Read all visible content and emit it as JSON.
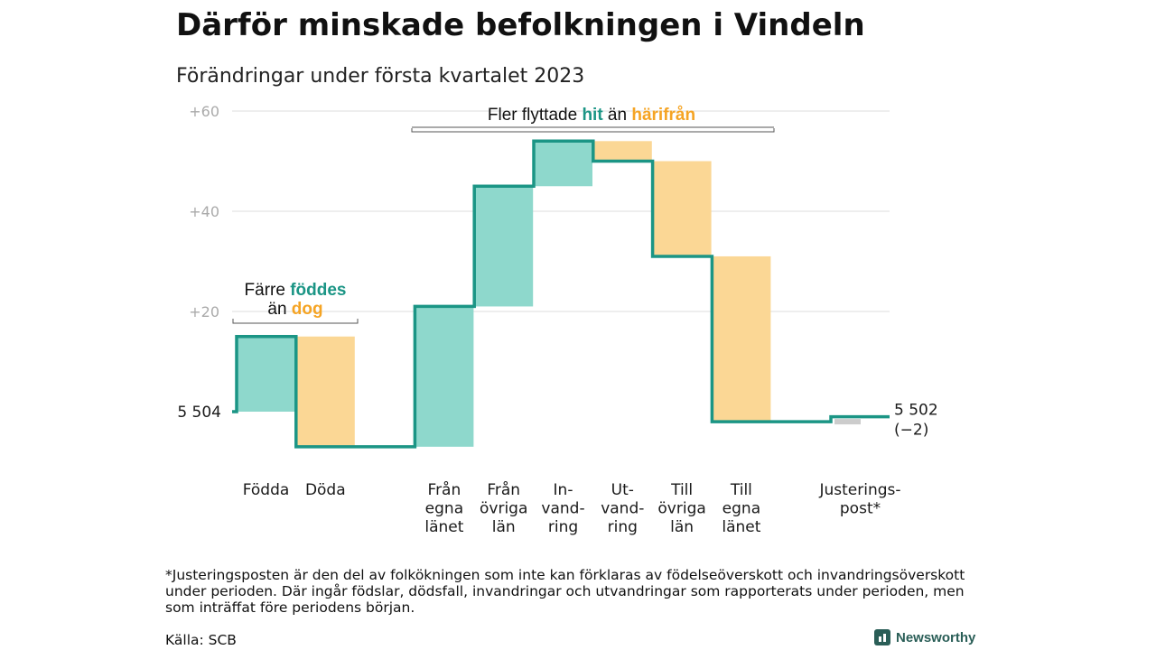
{
  "title": "Därför minskade befolkningen i Vindeln",
  "subtitle": "Förändringar under första kvartalet 2023",
  "chart_data": {
    "type": "waterfall",
    "start": {
      "value": 5504,
      "label": "5 504"
    },
    "end": {
      "value": 5502,
      "label": "5 502",
      "change_label": "(−2)"
    },
    "y_ticks": [
      {
        "value": 20,
        "label": "+20"
      },
      {
        "value": 40,
        "label": "+40"
      },
      {
        "value": 60,
        "label": "+60"
      }
    ],
    "ylim": [
      -8,
      62
    ],
    "grid": true,
    "steps": [
      {
        "label_lines": [
          "Födda"
        ],
        "value": 15,
        "kind": "in"
      },
      {
        "label_lines": [
          "Döda"
        ],
        "value": -22,
        "kind": "out"
      },
      {
        "label_lines": [
          ""
        ],
        "value": 0,
        "kind": "gap"
      },
      {
        "label_lines": [
          "Från",
          "egna",
          "länet"
        ],
        "value": 28,
        "kind": "in"
      },
      {
        "label_lines": [
          "Från",
          "övriga",
          "län"
        ],
        "value": 24,
        "kind": "in"
      },
      {
        "label_lines": [
          "In-",
          "vand-",
          "ring"
        ],
        "value": 9,
        "kind": "in"
      },
      {
        "label_lines": [
          "Ut-",
          "vand-",
          "ring"
        ],
        "value": -4,
        "kind": "out"
      },
      {
        "label_lines": [
          "Till",
          "övriga",
          "län"
        ],
        "value": -19,
        "kind": "out"
      },
      {
        "label_lines": [
          "Till",
          "egna",
          "länet"
        ],
        "value": -33,
        "kind": "out"
      },
      {
        "label_lines": [
          ""
        ],
        "value": 0,
        "kind": "gap"
      },
      {
        "label_lines": [
          "Justerings-",
          "post*"
        ],
        "value": 0,
        "kind": "adjust"
      }
    ],
    "annotations": {
      "births": {
        "line1_prefix": "Färre ",
        "line1_highlight": "föddes",
        "line2_prefix": "än ",
        "line2_highlight": "dog"
      },
      "migration": {
        "prefix": "Fler flyttade ",
        "highlight_in": "hit",
        "middle": " än ",
        "highlight_out": "härifrån"
      }
    },
    "colors": {
      "in": "#8ed8cc",
      "out": "#fbd795",
      "line": "#1b9585",
      "text_in": "#1b9585",
      "text_out": "#f5a424",
      "grid": "#dddddd",
      "tick": "#aaaaaa",
      "adjust": "#cccccc"
    }
  },
  "footnote": "*Justeringsposten är den del av folkökningen som inte kan förklaras av födelseöverskott och invandringsöverskott under perioden. Där ingår födslar, dödsfall, invandringar och utvandringar som rapporterats under perioden, men som inträffat före periodens början.",
  "source": "Källa: SCB",
  "brand": {
    "name": "Newsworthy",
    "icon": "newsworthy-logo-icon"
  }
}
